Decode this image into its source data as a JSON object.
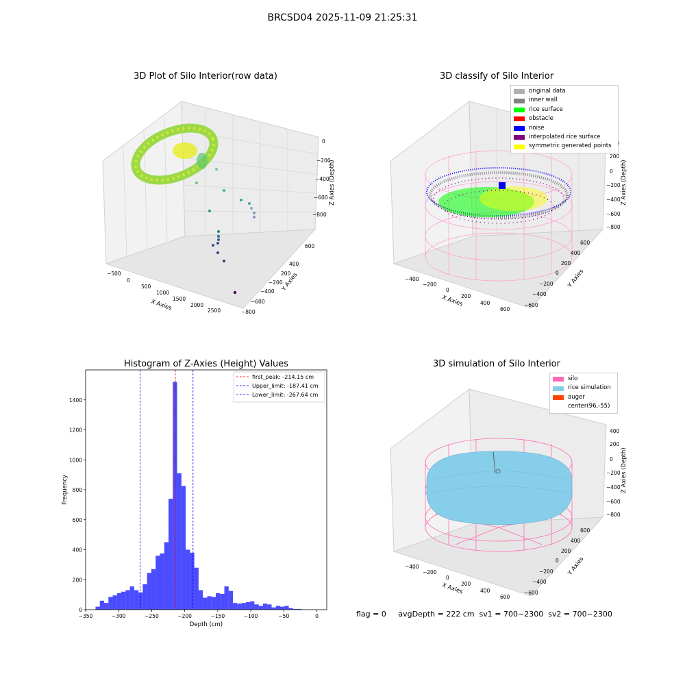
{
  "suptitle": "BRCSD04 2025-11-09 21:25:31",
  "panels": {
    "raw": {
      "title": "3D Plot of Silo Interior(row data)",
      "xlabel": "X Axies",
      "ylabel": "Y Axies",
      "zlabel": "Z Axies (Depth)",
      "xticks": [
        "−500",
        "0",
        "500",
        "1000",
        "1500",
        "2000",
        "2500"
      ],
      "yticks": [
        "600",
        "400",
        "200",
        "−200",
        "−400",
        "−600",
        "−800"
      ],
      "zticks": [
        "0",
        "−200",
        "−400",
        "−600",
        "−800"
      ]
    },
    "classify": {
      "title": "3D classify of Silo Interior",
      "xlabel": "X Axies",
      "ylabel": "Y Axies",
      "zlabel": "Z Axies (Depth)",
      "xticks": [
        "−400",
        "−200",
        "0",
        "200",
        "400",
        "600"
      ],
      "yticks": [
        "600",
        "400",
        "200",
        "0",
        "−200",
        "−400",
        "−600"
      ],
      "zticks": [
        "400",
        "200",
        "0",
        "−200",
        "−400",
        "−600",
        "−800"
      ],
      "legend": [
        {
          "label": "original data",
          "color": "#b0b0b0"
        },
        {
          "label": "inner wall",
          "color": "#808080"
        },
        {
          "label": "rice surface",
          "color": "#00ff00"
        },
        {
          "label": "obstacle",
          "color": "#ff0000"
        },
        {
          "label": "noise",
          "color": "#0000ff"
        },
        {
          "label": "interpolated rice surface",
          "color": "#800080"
        },
        {
          "label": "symmetric generated points",
          "color": "#ffff00"
        }
      ]
    },
    "simulation": {
      "title": "3D simulation of Silo Interior",
      "xlabel": "X Axies",
      "ylabel": "Y Axies",
      "zlabel": "Z Axies (Depth)",
      "xticks": [
        "−400",
        "−200",
        "0",
        "200",
        "400",
        "600"
      ],
      "yticks": [
        "600",
        "400",
        "200",
        "0",
        "−200",
        "−400",
        "−600"
      ],
      "zticks": [
        "400",
        "200",
        "0",
        "−200",
        "−400",
        "−600",
        "−800"
      ],
      "legend": [
        {
          "label": "silo",
          "color": "#ff69b4"
        },
        {
          "label": "rice simulation",
          "color": "#87ceeb"
        },
        {
          "label": "auger",
          "color": "#ff4500"
        },
        {
          "label": "center(96,-55)",
          "color": "#ffffff"
        }
      ]
    }
  },
  "chart_data": {
    "type": "bar",
    "title": "Histogram of Z-Axies (Height) Values",
    "xlabel": "Depth (cm)",
    "ylabel": "Frequency",
    "xlim": [
      -350,
      15
    ],
    "ylim": [
      0,
      1600
    ],
    "xticks": [
      -350,
      -300,
      -250,
      -200,
      -150,
      -100,
      -50,
      0
    ],
    "yticks": [
      0,
      200,
      400,
      600,
      800,
      1000,
      1200,
      1400
    ],
    "bin_width": 6.5,
    "bin_start": -335,
    "values": [
      20,
      60,
      45,
      85,
      95,
      110,
      120,
      130,
      155,
      130,
      115,
      170,
      245,
      270,
      360,
      375,
      450,
      740,
      1520,
      910,
      825,
      400,
      380,
      280,
      130,
      80,
      90,
      85,
      110,
      105,
      155,
      125,
      45,
      40,
      45,
      50,
      55,
      35,
      25,
      40,
      35,
      15,
      25,
      20,
      25,
      10,
      5,
      5
    ],
    "color": "#0000ff",
    "lines": [
      {
        "label": "first_peak: -214.15 cm",
        "x": -214.15,
        "color": "#ff0000"
      },
      {
        "label": "Upper_limit: -187.41 cm",
        "x": -187.41,
        "color": "#0000ff"
      },
      {
        "label": "Lower_limit: -267.64 cm",
        "x": -267.64,
        "color": "#0000ff"
      }
    ],
    "legend_position": "top-right",
    "grid": false
  },
  "footer": {
    "text": "flag = 0     avgDepth = 222 cm  sv1 = 700~2300  sv2 = 700~2300"
  }
}
